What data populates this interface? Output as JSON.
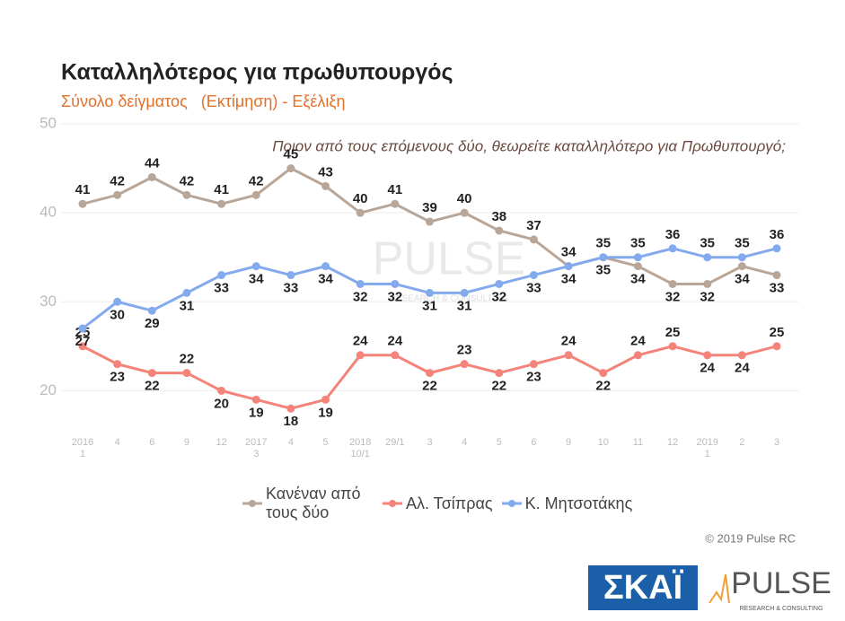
{
  "chart_data": {
    "type": "line",
    "title": "Καταλληλότερος για πρωθυπουργός",
    "subtitle": "Σύνολο δείγματος   (Εκτίμηση) - Εξέλιξη",
    "question": "Ποιον από τους επόμενους δύο, θεωρείτε καταλληλότερο για Πρωθυπουργό;",
    "copyright": "© 2019 Pulse RC",
    "watermark": "PULSE",
    "watermark_sub": "RESEARCH & CONSULTING",
    "logos": {
      "skai": "ΣΚΑΪ",
      "pulse": "PULSE",
      "pulse_sub": "RESEARCH & CONSULTING"
    },
    "categories": [
      [
        "2016",
        "1"
      ],
      [
        "4"
      ],
      [
        "6"
      ],
      [
        "9"
      ],
      [
        "12"
      ],
      [
        "2017",
        "3"
      ],
      [
        "4"
      ],
      [
        "5"
      ],
      [
        "2018",
        "10/1"
      ],
      [
        "29/1"
      ],
      [
        "3"
      ],
      [
        "4"
      ],
      [
        "5"
      ],
      [
        "6"
      ],
      [
        "9"
      ],
      [
        "10"
      ],
      [
        "11"
      ],
      [
        "12"
      ],
      [
        "2019",
        "1"
      ],
      [
        "2"
      ],
      [
        "3"
      ]
    ],
    "series": [
      {
        "name": "Κανέναν από τους δύο",
        "color": "#b8a799",
        "values": [
          41,
          42,
          44,
          42,
          41,
          42,
          45,
          43,
          40,
          41,
          39,
          40,
          38,
          37,
          34,
          35,
          34,
          32,
          32,
          34,
          33
        ]
      },
      {
        "name": "Αλ. Τσίπρας",
        "color": "#f4837a",
        "values": [
          25,
          23,
          22,
          22,
          20,
          19,
          18,
          19,
          24,
          24,
          22,
          23,
          22,
          23,
          24,
          22,
          24,
          25,
          24,
          24,
          25
        ]
      },
      {
        "name": "Κ. Μητσοτάκης",
        "color": "#84aaee",
        "values": [
          27,
          30,
          29,
          31,
          33,
          34,
          33,
          34,
          32,
          32,
          31,
          31,
          32,
          33,
          34,
          35,
          35,
          36,
          35,
          35,
          36
        ]
      }
    ],
    "ylim": [
      15,
      50
    ],
    "yticks": [
      20,
      30,
      40,
      50
    ],
    "grid": true
  }
}
